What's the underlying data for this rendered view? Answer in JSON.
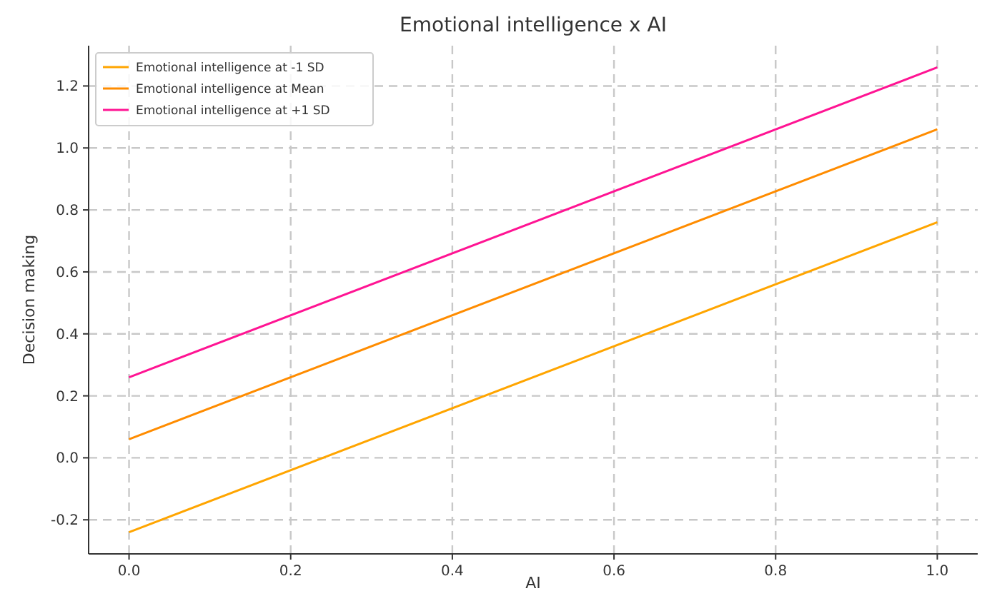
{
  "chart_data": {
    "type": "line",
    "title": "Emotional intelligence x AI",
    "xlabel": "AI",
    "ylabel": "Decision making",
    "x": [
      0,
      1
    ],
    "series": [
      {
        "name": "Emotional intelligence at -1 SD",
        "color": "#ffa500",
        "values": [
          -0.24,
          0.76
        ]
      },
      {
        "name": "Emotional intelligence at Mean",
        "color": "#ff8c00",
        "values": [
          0.06,
          1.06
        ]
      },
      {
        "name": "Emotional intelligence at +1 SD",
        "color": "#ff1493",
        "values": [
          0.26,
          1.26
        ]
      }
    ],
    "xlim": [
      -0.05,
      1.05
    ],
    "xticks": [
      {
        "value": 0,
        "label": "0.0"
      },
      0.2,
      0.4,
      0.6,
      0.8,
      {
        "value": 1,
        "label": "1.0"
      }
    ],
    "ylim": [
      -0.31,
      1.33
    ],
    "yticks": [
      -0.2,
      {
        "value": 0,
        "label": "0.0"
      },
      0.2,
      0.4,
      0.6,
      0.8,
      {
        "value": 1,
        "label": "1.0"
      },
      1.2
    ],
    "grid": true,
    "legend": "top left",
    "marker": "none",
    "line_style": "solid"
  }
}
